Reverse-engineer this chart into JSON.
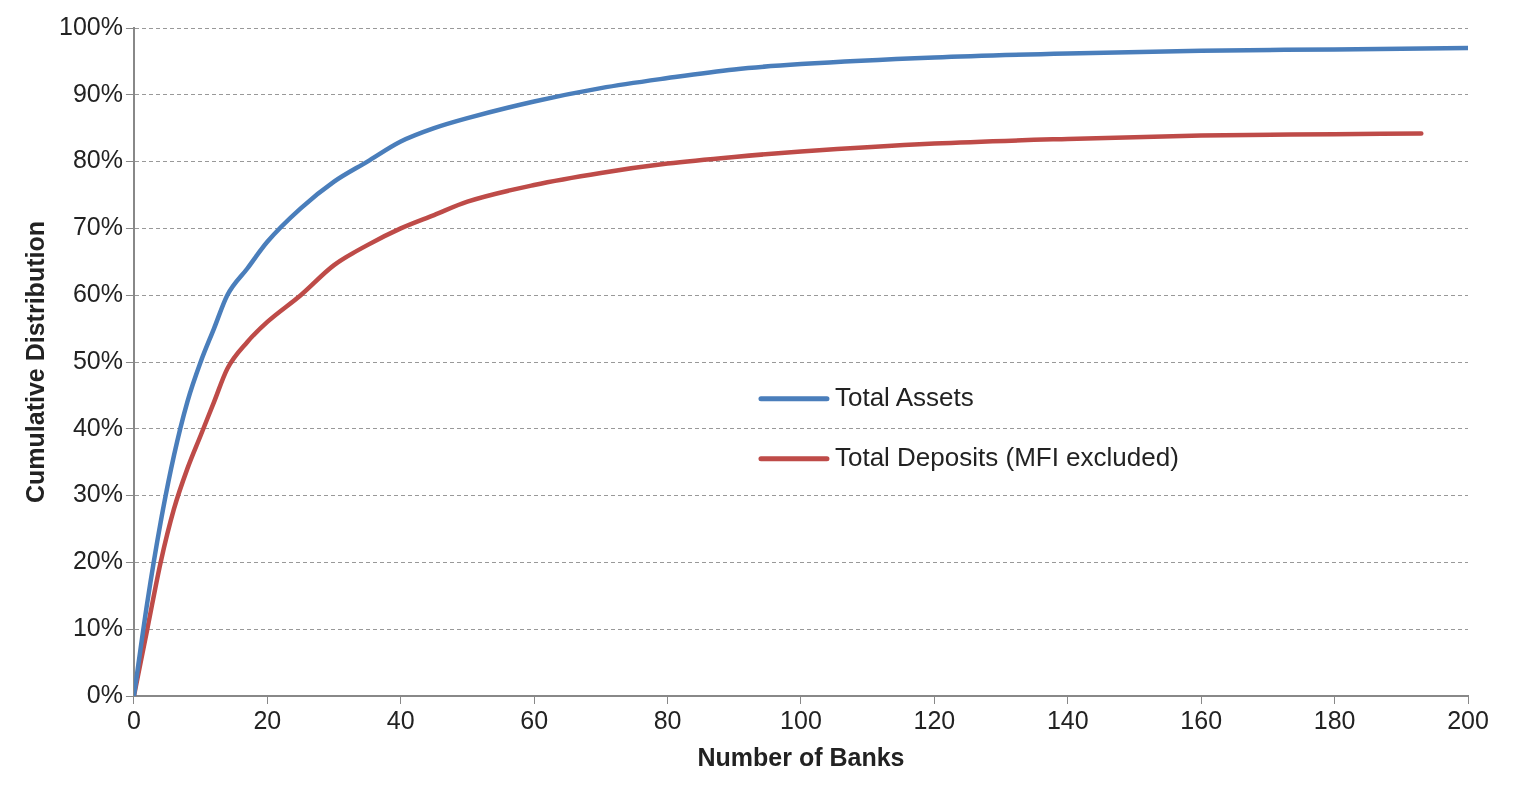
{
  "chart_data": {
    "type": "line",
    "xlabel": "Number of Banks",
    "ylabel": "Cumulative Distribution",
    "xlim": [
      0,
      200
    ],
    "xticks": [
      0,
      20,
      40,
      60,
      80,
      100,
      120,
      140,
      160,
      180,
      200
    ],
    "ylim": [
      0,
      100
    ],
    "yticks": [
      {
        "value": 0,
        "label": "0%"
      },
      {
        "value": 10,
        "label": "10%"
      },
      {
        "value": 20,
        "label": "20%"
      },
      {
        "value": 30,
        "label": "30%"
      },
      {
        "value": 40,
        "label": "40%"
      },
      {
        "value": 50,
        "label": "50%"
      },
      {
        "value": 60,
        "label": "60%"
      },
      {
        "value": 70,
        "label": "70%"
      },
      {
        "value": 80,
        "label": "80%"
      },
      {
        "value": 90,
        "label": "90%"
      },
      {
        "value": 100,
        "label": "100%"
      }
    ],
    "grid": "y",
    "legend": "center right",
    "marker": "none",
    "line_style": "solid",
    "series": [
      {
        "name": "Total Assets",
        "color": "#4a7ebb",
        "x": [
          0,
          2,
          4,
          6,
          8,
          10,
          12,
          14,
          17,
          20,
          25,
          30,
          35,
          40,
          45,
          50,
          60,
          70,
          80,
          90,
          100,
          120,
          140,
          160,
          180,
          200
        ],
        "values": [
          0,
          14,
          26,
          36,
          44,
          50,
          55,
          60,
          64,
          68,
          73,
          77,
          80,
          83,
          85,
          86.5,
          89,
          91,
          92.5,
          93.8,
          94.6,
          95.6,
          96.2,
          96.6,
          96.8,
          97
        ]
      },
      {
        "name": "Total Deposits (MFI excluded)",
        "color": "#be4b48",
        "x": [
          0,
          2,
          4,
          6,
          8,
          10,
          12,
          14,
          17,
          20,
          25,
          30,
          35,
          40,
          45,
          50,
          60,
          70,
          80,
          90,
          100,
          120,
          140,
          160,
          180,
          193
        ],
        "values": [
          0,
          10,
          20,
          28,
          34,
          39,
          44,
          49,
          53,
          56,
          60,
          64.5,
          67.5,
          70,
          72,
          74,
          76.5,
          78.3,
          79.7,
          80.7,
          81.5,
          82.7,
          83.4,
          83.9,
          84.1,
          84.2
        ]
      }
    ]
  }
}
